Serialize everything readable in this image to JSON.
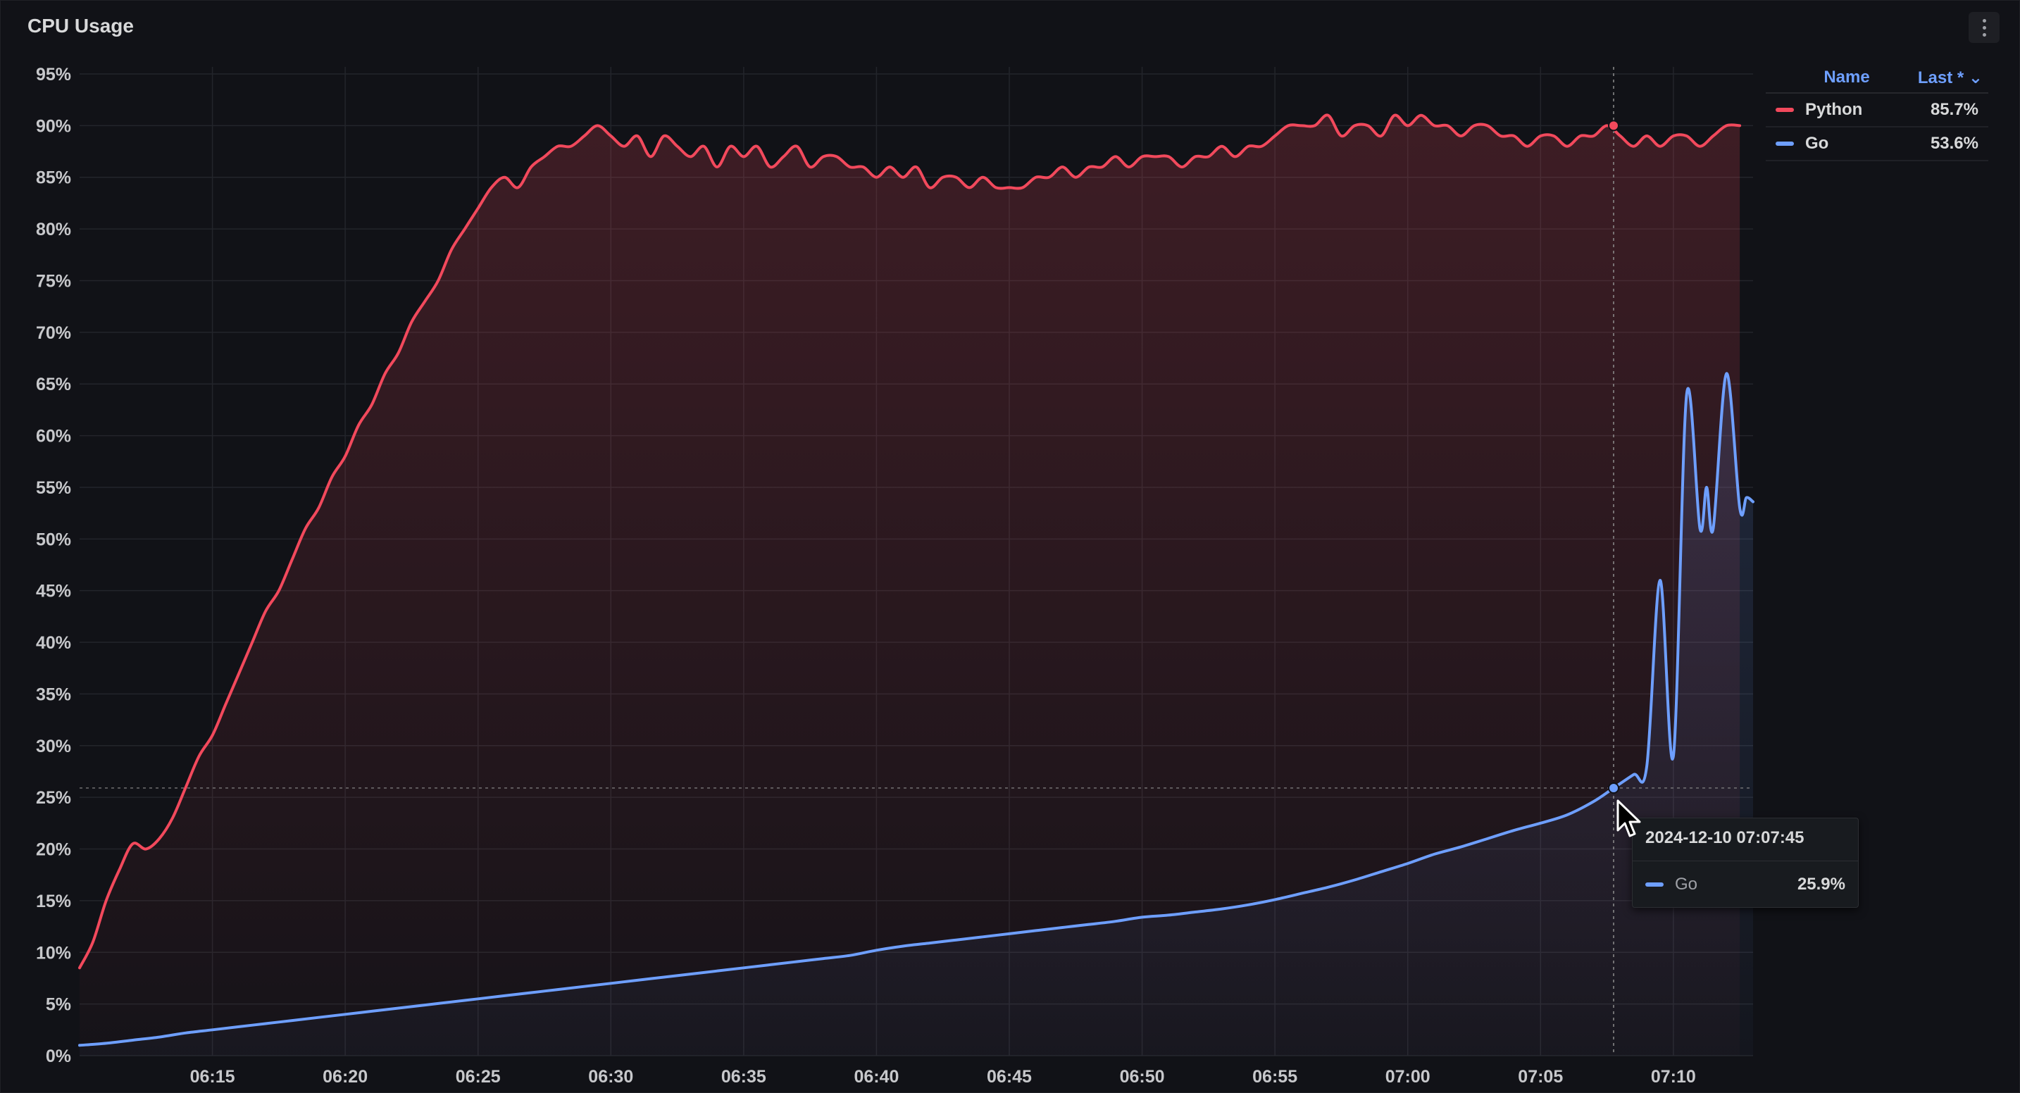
{
  "panel": {
    "title": "CPU Usage"
  },
  "legend": {
    "name_header": "Name",
    "last_header": "Last *",
    "items": [
      {
        "name": "Python",
        "last": "85.7%",
        "color": "#f2495c"
      },
      {
        "name": "Go",
        "last": "53.6%",
        "color": "#6e9fff"
      }
    ]
  },
  "tooltip": {
    "time": "2024-12-10 07:07:45",
    "series": "Go",
    "value": "25.9%",
    "color": "#6e9fff"
  },
  "colors": {
    "python": "#f2495c",
    "go": "#6e9fff",
    "grid": "#23252b",
    "axis_text": "#c7c8cb"
  },
  "chart_data": {
    "type": "line",
    "x_unit": "time (HH:MM)",
    "x_tick_labels": [
      "06:15",
      "06:20",
      "06:25",
      "06:30",
      "06:35",
      "06:40",
      "06:45",
      "06:50",
      "06:55",
      "07:00",
      "07:05",
      "07:10"
    ],
    "y_tick_labels": [
      "0%",
      "5%",
      "10%",
      "15%",
      "20%",
      "25%",
      "30%",
      "35%",
      "40%",
      "45%",
      "50%",
      "55%",
      "60%",
      "65%",
      "70%",
      "75%",
      "80%",
      "85%",
      "90%",
      "95%"
    ],
    "ylim": [
      0,
      95
    ],
    "xlim": [
      "06:10",
      "07:13"
    ],
    "grid": true,
    "legend_position": "right",
    "hover_time": "07:07:45",
    "series": [
      {
        "name": "Python",
        "color": "#f2495c",
        "fill": "gradient",
        "points": [
          [
            "06:10:00",
            8.5
          ],
          [
            "06:10:30",
            11
          ],
          [
            "06:11:00",
            15
          ],
          [
            "06:11:30",
            18
          ],
          [
            "06:12:00",
            20.5
          ],
          [
            "06:12:30",
            20
          ],
          [
            "06:13:00",
            21
          ],
          [
            "06:13:30",
            23
          ],
          [
            "06:14:00",
            26
          ],
          [
            "06:14:30",
            29
          ],
          [
            "06:15:00",
            31
          ],
          [
            "06:15:30",
            34
          ],
          [
            "06:16:00",
            37
          ],
          [
            "06:16:30",
            40
          ],
          [
            "06:17:00",
            43
          ],
          [
            "06:17:30",
            45
          ],
          [
            "06:18:00",
            48
          ],
          [
            "06:18:30",
            51
          ],
          [
            "06:19:00",
            53
          ],
          [
            "06:19:30",
            56
          ],
          [
            "06:20:00",
            58
          ],
          [
            "06:20:30",
            61
          ],
          [
            "06:21:00",
            63
          ],
          [
            "06:21:30",
            66
          ],
          [
            "06:22:00",
            68
          ],
          [
            "06:22:30",
            71
          ],
          [
            "06:23:00",
            73
          ],
          [
            "06:23:30",
            75
          ],
          [
            "06:24:00",
            78
          ],
          [
            "06:24:30",
            80
          ],
          [
            "06:25:00",
            82
          ],
          [
            "06:25:30",
            84
          ],
          [
            "06:26:00",
            85
          ],
          [
            "06:26:30",
            84
          ],
          [
            "06:27:00",
            86
          ],
          [
            "06:27:30",
            87
          ],
          [
            "06:28:00",
            88
          ],
          [
            "06:28:30",
            88
          ],
          [
            "06:29:00",
            89
          ],
          [
            "06:29:30",
            90
          ],
          [
            "06:30:00",
            89
          ],
          [
            "06:30:30",
            88
          ],
          [
            "06:31:00",
            89
          ],
          [
            "06:31:30",
            87
          ],
          [
            "06:32:00",
            89
          ],
          [
            "06:32:30",
            88
          ],
          [
            "06:33:00",
            87
          ],
          [
            "06:33:30",
            88
          ],
          [
            "06:34:00",
            86
          ],
          [
            "06:34:30",
            88
          ],
          [
            "06:35:00",
            87
          ],
          [
            "06:35:30",
            88
          ],
          [
            "06:36:00",
            86
          ],
          [
            "06:36:30",
            87
          ],
          [
            "06:37:00",
            88
          ],
          [
            "06:37:30",
            86
          ],
          [
            "06:38:00",
            87
          ],
          [
            "06:38:30",
            87
          ],
          [
            "06:39:00",
            86
          ],
          [
            "06:39:30",
            86
          ],
          [
            "06:40:00",
            85
          ],
          [
            "06:40:30",
            86
          ],
          [
            "06:41:00",
            85
          ],
          [
            "06:41:30",
            86
          ],
          [
            "06:42:00",
            84
          ],
          [
            "06:42:30",
            85
          ],
          [
            "06:43:00",
            85
          ],
          [
            "06:43:30",
            84
          ],
          [
            "06:44:00",
            85
          ],
          [
            "06:44:30",
            84
          ],
          [
            "06:45:00",
            84
          ],
          [
            "06:45:30",
            84
          ],
          [
            "06:46:00",
            85
          ],
          [
            "06:46:30",
            85
          ],
          [
            "06:47:00",
            86
          ],
          [
            "06:47:30",
            85
          ],
          [
            "06:48:00",
            86
          ],
          [
            "06:48:30",
            86
          ],
          [
            "06:49:00",
            87
          ],
          [
            "06:49:30",
            86
          ],
          [
            "06:50:00",
            87
          ],
          [
            "06:50:30",
            87
          ],
          [
            "06:51:00",
            87
          ],
          [
            "06:51:30",
            86
          ],
          [
            "06:52:00",
            87
          ],
          [
            "06:52:30",
            87
          ],
          [
            "06:53:00",
            88
          ],
          [
            "06:53:30",
            87
          ],
          [
            "06:54:00",
            88
          ],
          [
            "06:54:30",
            88
          ],
          [
            "06:55:00",
            89
          ],
          [
            "06:55:30",
            90
          ],
          [
            "06:56:00",
            90
          ],
          [
            "06:56:30",
            90
          ],
          [
            "06:57:00",
            91
          ],
          [
            "06:57:30",
            89
          ],
          [
            "06:58:00",
            90
          ],
          [
            "06:58:30",
            90
          ],
          [
            "06:59:00",
            89
          ],
          [
            "06:59:30",
            91
          ],
          [
            "07:00:00",
            90
          ],
          [
            "07:00:30",
            91
          ],
          [
            "07:01:00",
            90
          ],
          [
            "07:01:30",
            90
          ],
          [
            "07:02:00",
            89
          ],
          [
            "07:02:30",
            90
          ],
          [
            "07:03:00",
            90
          ],
          [
            "07:03:30",
            89
          ],
          [
            "07:04:00",
            89
          ],
          [
            "07:04:30",
            88
          ],
          [
            "07:05:00",
            89
          ],
          [
            "07:05:30",
            89
          ],
          [
            "07:06:00",
            88
          ],
          [
            "07:06:30",
            89
          ],
          [
            "07:07:00",
            89
          ],
          [
            "07:07:30",
            90
          ],
          [
            "07:08:00",
            89
          ],
          [
            "07:08:30",
            88
          ],
          [
            "07:09:00",
            89
          ],
          [
            "07:09:30",
            88
          ],
          [
            "07:10:00",
            89
          ],
          [
            "07:10:30",
            89
          ],
          [
            "07:11:00",
            88
          ],
          [
            "07:11:30",
            89
          ],
          [
            "07:12:00",
            90
          ],
          [
            "07:12:30",
            90
          ]
        ]
      },
      {
        "name": "Go",
        "color": "#6e9fff",
        "fill": "gradient",
        "points": [
          [
            "06:10:00",
            1
          ],
          [
            "06:11:00",
            1.2
          ],
          [
            "06:12:00",
            1.5
          ],
          [
            "06:13:00",
            1.8
          ],
          [
            "06:14:00",
            2.2
          ],
          [
            "06:15:00",
            2.5
          ],
          [
            "06:16:00",
            2.8
          ],
          [
            "06:17:00",
            3.1
          ],
          [
            "06:18:00",
            3.4
          ],
          [
            "06:19:00",
            3.7
          ],
          [
            "06:20:00",
            4
          ],
          [
            "06:21:00",
            4.3
          ],
          [
            "06:22:00",
            4.6
          ],
          [
            "06:23:00",
            4.9
          ],
          [
            "06:24:00",
            5.2
          ],
          [
            "06:25:00",
            5.5
          ],
          [
            "06:26:00",
            5.8
          ],
          [
            "06:27:00",
            6.1
          ],
          [
            "06:28:00",
            6.4
          ],
          [
            "06:29:00",
            6.7
          ],
          [
            "06:30:00",
            7
          ],
          [
            "06:31:00",
            7.3
          ],
          [
            "06:32:00",
            7.6
          ],
          [
            "06:33:00",
            7.9
          ],
          [
            "06:34:00",
            8.2
          ],
          [
            "06:35:00",
            8.5
          ],
          [
            "06:36:00",
            8.8
          ],
          [
            "06:37:00",
            9.1
          ],
          [
            "06:38:00",
            9.4
          ],
          [
            "06:39:00",
            9.7
          ],
          [
            "06:40:00",
            10.2
          ],
          [
            "06:41:00",
            10.6
          ],
          [
            "06:42:00",
            10.9
          ],
          [
            "06:43:00",
            11.2
          ],
          [
            "06:44:00",
            11.5
          ],
          [
            "06:45:00",
            11.8
          ],
          [
            "06:46:00",
            12.1
          ],
          [
            "06:47:00",
            12.4
          ],
          [
            "06:48:00",
            12.7
          ],
          [
            "06:49:00",
            13
          ],
          [
            "06:50:00",
            13.4
          ],
          [
            "06:51:00",
            13.6
          ],
          [
            "06:52:00",
            13.9
          ],
          [
            "06:53:00",
            14.2
          ],
          [
            "06:54:00",
            14.6
          ],
          [
            "06:55:00",
            15.1
          ],
          [
            "06:56:00",
            15.7
          ],
          [
            "06:57:00",
            16.3
          ],
          [
            "06:58:00",
            17
          ],
          [
            "06:59:00",
            17.8
          ],
          [
            "07:00:00",
            18.6
          ],
          [
            "07:01:00",
            19.5
          ],
          [
            "07:02:00",
            20.2
          ],
          [
            "07:03:00",
            21
          ],
          [
            "07:04:00",
            21.8
          ],
          [
            "07:05:00",
            22.5
          ],
          [
            "07:06:00",
            23.3
          ],
          [
            "07:07:00",
            24.6
          ],
          [
            "07:07:45",
            25.9
          ],
          [
            "07:08:30",
            27.2
          ],
          [
            "07:09:00",
            28
          ],
          [
            "07:09:30",
            46
          ],
          [
            "07:10:00",
            29
          ],
          [
            "07:10:30",
            64
          ],
          [
            "07:11:00",
            51
          ],
          [
            "07:11:15",
            55
          ],
          [
            "07:11:30",
            51
          ],
          [
            "07:12:00",
            66
          ],
          [
            "07:12:30",
            53
          ],
          [
            "07:12:45",
            54
          ],
          [
            "07:13:00",
            53.6
          ]
        ]
      }
    ]
  }
}
